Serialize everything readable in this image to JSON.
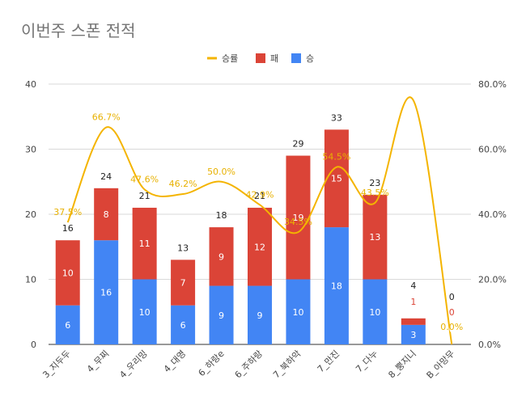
{
  "chart_data": {
    "type": "bar",
    "stacked": true,
    "title": "이번주 스폰 전적",
    "categories": [
      "3_지두두",
      "4_무찌",
      "4_우리밍",
      "4_대영",
      "6_하랑e",
      "6_주하랑",
      "7_북하악",
      "7_만진",
      "7_다누",
      "8_뿡지니",
      "B_아망무"
    ],
    "series": [
      {
        "name": "승",
        "type": "bar",
        "axis": "left",
        "color": "#4285f4",
        "values": [
          6,
          16,
          10,
          6,
          9,
          9,
          10,
          18,
          10,
          3,
          0
        ]
      },
      {
        "name": "패",
        "type": "bar",
        "axis": "left",
        "color": "#db4437",
        "values": [
          10,
          8,
          11,
          7,
          9,
          12,
          19,
          15,
          13,
          1,
          0
        ]
      },
      {
        "name": "승률",
        "type": "line",
        "axis": "right",
        "color": "#f4b400",
        "values": [
          37.5,
          66.7,
          47.6,
          46.2,
          50.0,
          42.9,
          34.5,
          54.5,
          43.5,
          75.0,
          0.0
        ]
      }
    ],
    "totals": [
      16,
      24,
      21,
      13,
      18,
      21,
      29,
      33,
      23,
      4,
      0
    ],
    "win_labels": [
      "6",
      "16",
      "10",
      "6",
      "9",
      "9",
      "10",
      "18",
      "10",
      "3",
      "0"
    ],
    "loss_labels": [
      "10",
      "8",
      "11",
      "7",
      "9",
      "12",
      "19",
      "15",
      "13",
      "1",
      "0"
    ],
    "rate_labels": [
      "37.5%",
      "66.7%",
      "47.6%",
      "46.2%",
      "50.0%",
      "42.9%",
      "34.5%",
      "54.5%",
      "43.5%",
      "",
      "0.0%"
    ],
    "ylim": [
      0,
      40
    ],
    "yticks": [
      "0",
      "10",
      "20",
      "30",
      "40"
    ],
    "y2lim": [
      0,
      80
    ],
    "y2ticks": [
      "0.0%",
      "20.0%",
      "40.0%",
      "60.0%",
      "80.0%"
    ],
    "legend": {
      "position": "top",
      "items": [
        "승률",
        "패",
        "승"
      ]
    },
    "grid": true
  },
  "colors": {
    "title": "#757575",
    "grid": "#d9d9d9",
    "axis_text": "#444444",
    "rate_label": "#e8b100"
  }
}
